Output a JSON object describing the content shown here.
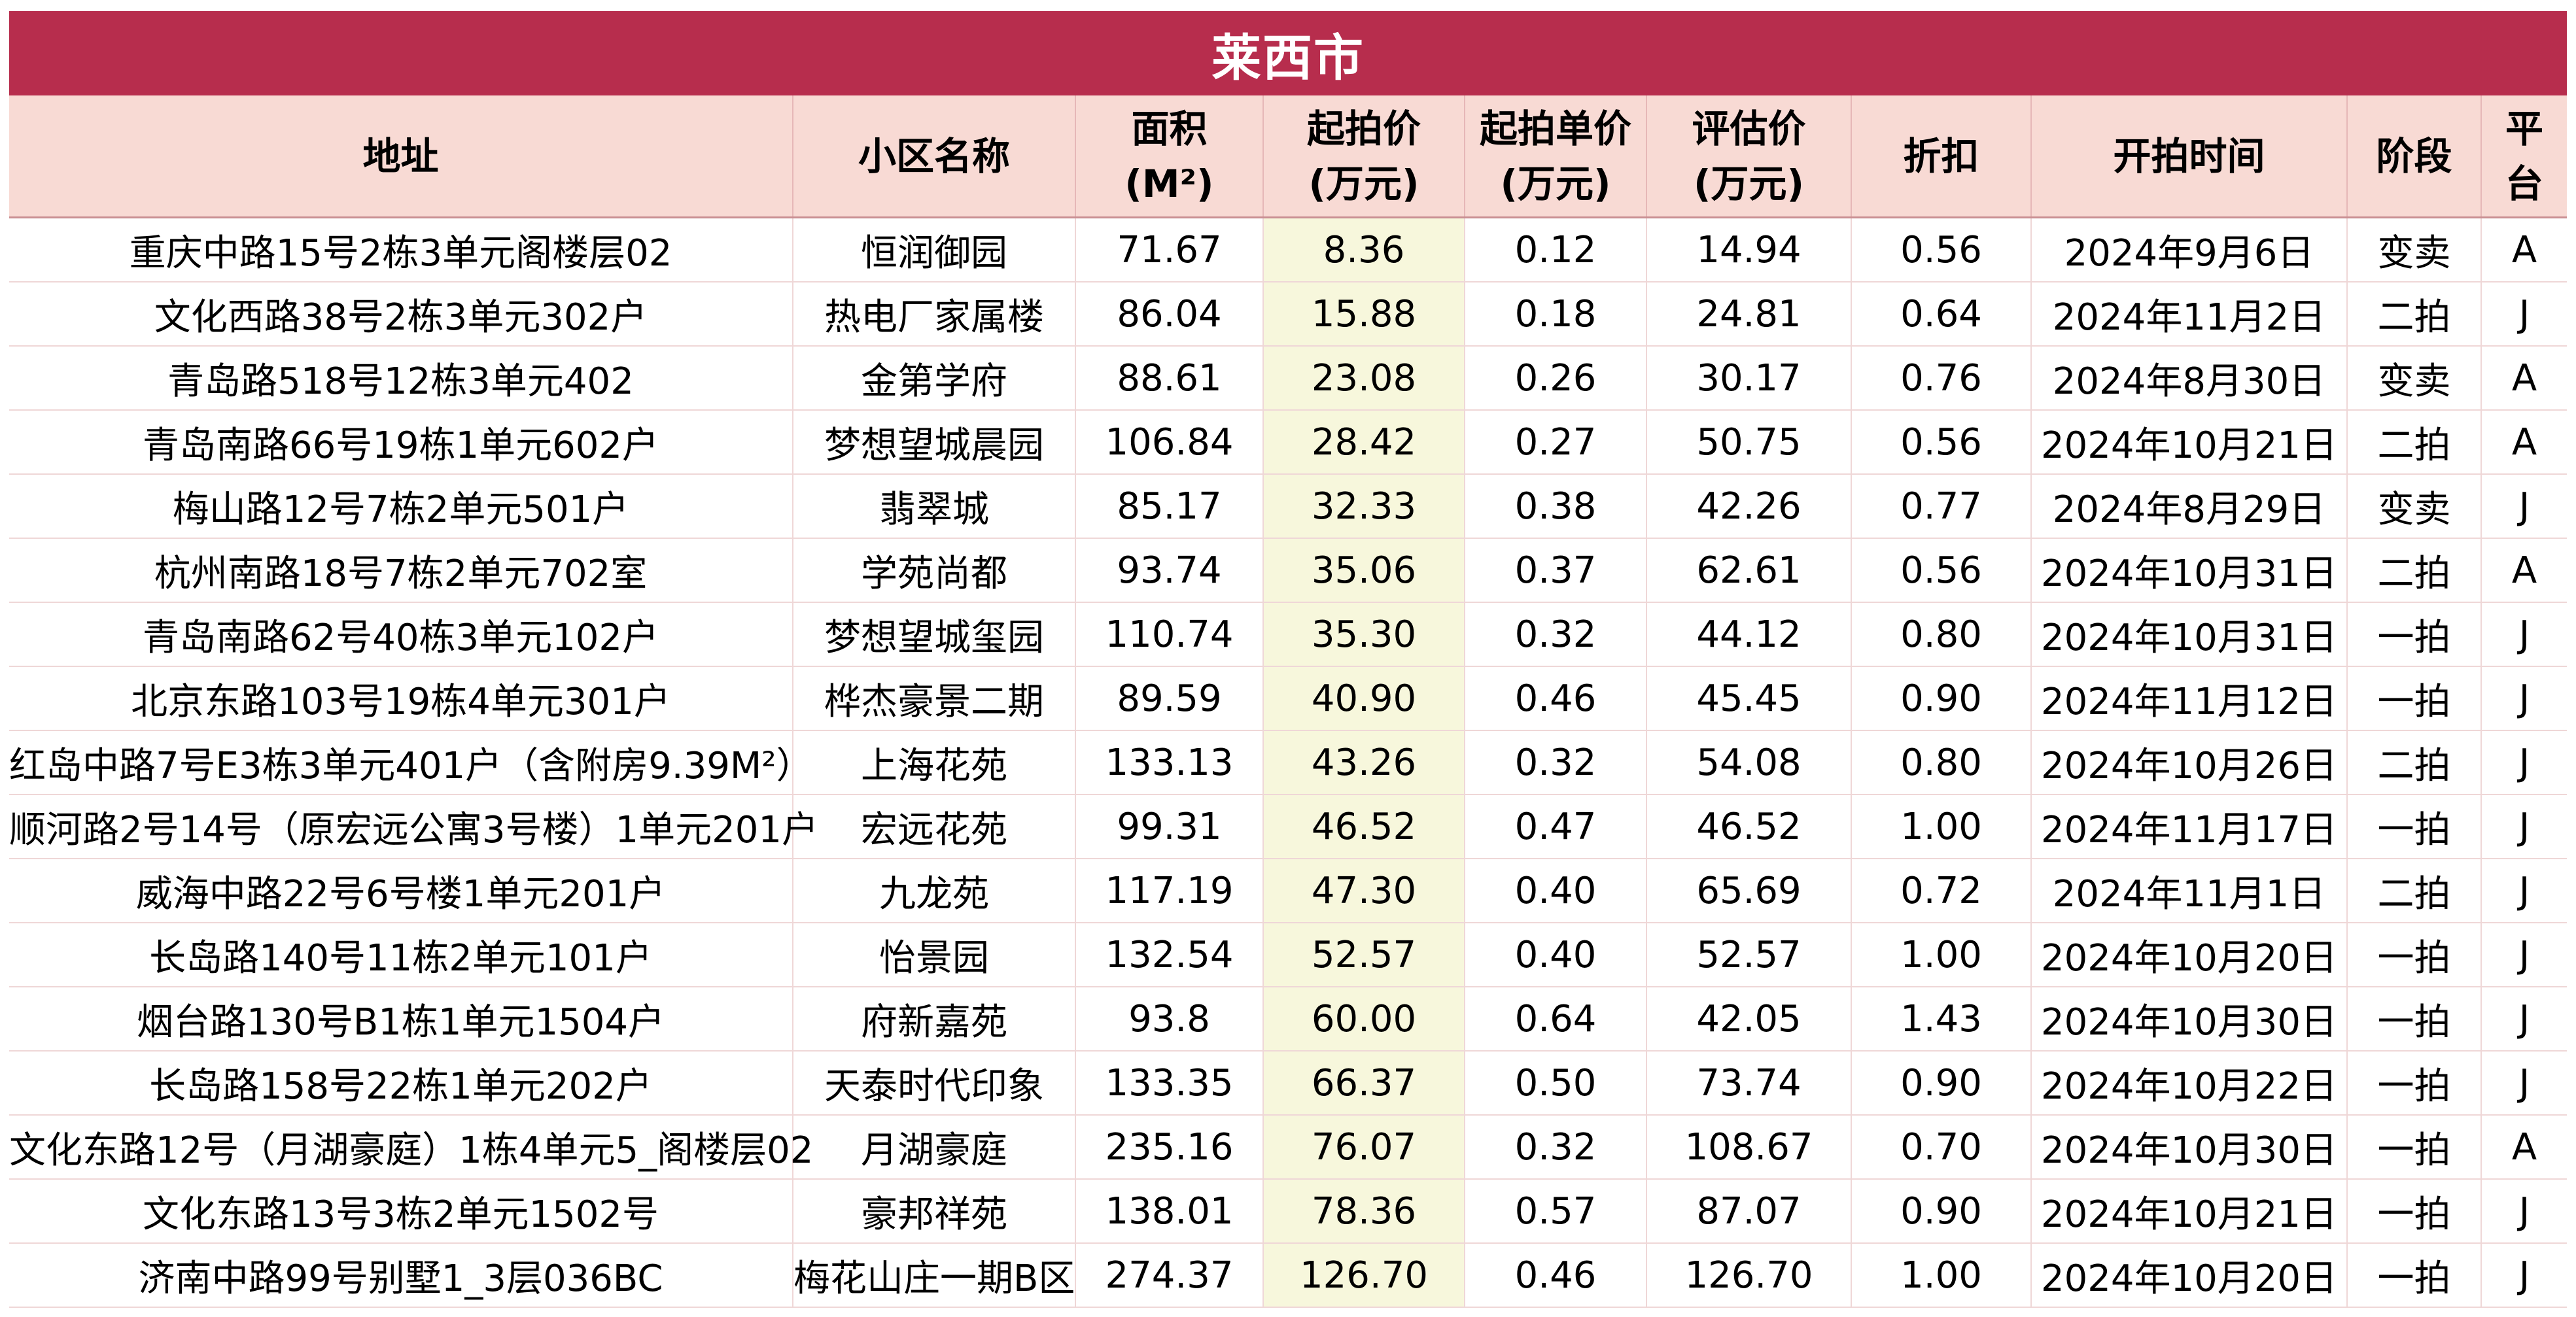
{
  "title": "莱西市",
  "headers": [
    {
      "l1": "地址",
      "l2": ""
    },
    {
      "l1": "小区名称",
      "l2": ""
    },
    {
      "l1": "面积",
      "l2": "(M²)"
    },
    {
      "l1": "起拍价",
      "l2": "(万元)"
    },
    {
      "l1": "起拍单价",
      "l2": "(万元)"
    },
    {
      "l1": "评估价",
      "l2": "(万元)"
    },
    {
      "l1": "折扣",
      "l2": ""
    },
    {
      "l1": "开拍时间",
      "l2": ""
    },
    {
      "l1": "阶段",
      "l2": ""
    },
    {
      "l1": "平",
      "l2": "台"
    }
  ],
  "rows": [
    [
      "重庆中路15号2栋3单元阁楼层02",
      "恒润御园",
      "71.67",
      "8.36",
      "0.12",
      "14.94",
      "0.56",
      "2024年9月6日",
      "变卖",
      "A"
    ],
    [
      "文化西路38号2栋3单元302户",
      "热电厂家属楼",
      "86.04",
      "15.88",
      "0.18",
      "24.81",
      "0.64",
      "2024年11月2日",
      "二拍",
      "J"
    ],
    [
      "青岛路518号12栋3单元402",
      "金第学府",
      "88.61",
      "23.08",
      "0.26",
      "30.17",
      "0.76",
      "2024年8月30日",
      "变卖",
      "A"
    ],
    [
      "青岛南路66号19栋1单元602户",
      "梦想望城晨园",
      "106.84",
      "28.42",
      "0.27",
      "50.75",
      "0.56",
      "2024年10月21日",
      "二拍",
      "A"
    ],
    [
      "梅山路12号7栋2单元501户",
      "翡翠城",
      "85.17",
      "32.33",
      "0.38",
      "42.26",
      "0.77",
      "2024年8月29日",
      "变卖",
      "J"
    ],
    [
      "杭州南路18号7栋2单元702室",
      "学苑尚都",
      "93.74",
      "35.06",
      "0.37",
      "62.61",
      "0.56",
      "2024年10月31日",
      "二拍",
      "A"
    ],
    [
      "青岛南路62号40栋3单元102户",
      "梦想望城玺园",
      "110.74",
      "35.30",
      "0.32",
      "44.12",
      "0.80",
      "2024年10月31日",
      "一拍",
      "J"
    ],
    [
      "北京东路103号19栋4单元301户",
      "桦杰豪景二期",
      "89.59",
      "40.90",
      "0.46",
      "45.45",
      "0.90",
      "2024年11月12日",
      "一拍",
      "J"
    ],
    [
      "红岛中路7号E3栋3单元401户（含附房9.39M²）",
      "上海花苑",
      "133.13",
      "43.26",
      "0.32",
      "54.08",
      "0.80",
      "2024年10月26日",
      "二拍",
      "J"
    ],
    [
      "顺河路2号14号（原宏远公寓3号楼）1单元201户",
      "宏远花苑",
      "99.31",
      "46.52",
      "0.47",
      "46.52",
      "1.00",
      "2024年11月17日",
      "一拍",
      "J"
    ],
    [
      "威海中路22号6号楼1单元201户",
      "九龙苑",
      "117.19",
      "47.30",
      "0.40",
      "65.69",
      "0.72",
      "2024年11月1日",
      "二拍",
      "J"
    ],
    [
      "长岛路140号11栋2单元101户",
      "怡景园",
      "132.54",
      "52.57",
      "0.40",
      "52.57",
      "1.00",
      "2024年10月20日",
      "一拍",
      "J"
    ],
    [
      "烟台路130号B1栋1单元1504户",
      "府新嘉苑",
      "93.8",
      "60.00",
      "0.64",
      "42.05",
      "1.43",
      "2024年10月30日",
      "一拍",
      "J"
    ],
    [
      "长岛路158号22栋1单元202户",
      "天泰时代印象",
      "133.35",
      "66.37",
      "0.50",
      "73.74",
      "0.90",
      "2024年10月22日",
      "一拍",
      "J"
    ],
    [
      "文化东路12号（月湖豪庭）1栋4单元5_阁楼层02",
      "月湖豪庭",
      "235.16",
      "76.07",
      "0.32",
      "108.67",
      "0.70",
      "2024年10月30日",
      "一拍",
      "A"
    ],
    [
      "文化东路13号3栋2单元1502号",
      "豪邦祥苑",
      "138.01",
      "78.36",
      "0.57",
      "87.07",
      "0.90",
      "2024年10月21日",
      "一拍",
      "J"
    ],
    [
      "济南中路99号别墅1_3层036BC",
      "梅花山庄一期B区",
      "274.37",
      "126.70",
      "0.46",
      "126.70",
      "1.00",
      "2024年10月20日",
      "一拍",
      "J"
    ]
  ],
  "colors": {
    "title_bg": "#b72d4d",
    "header_bg": "#f8dad4",
    "price_col_bg": "#f7f7dc"
  }
}
